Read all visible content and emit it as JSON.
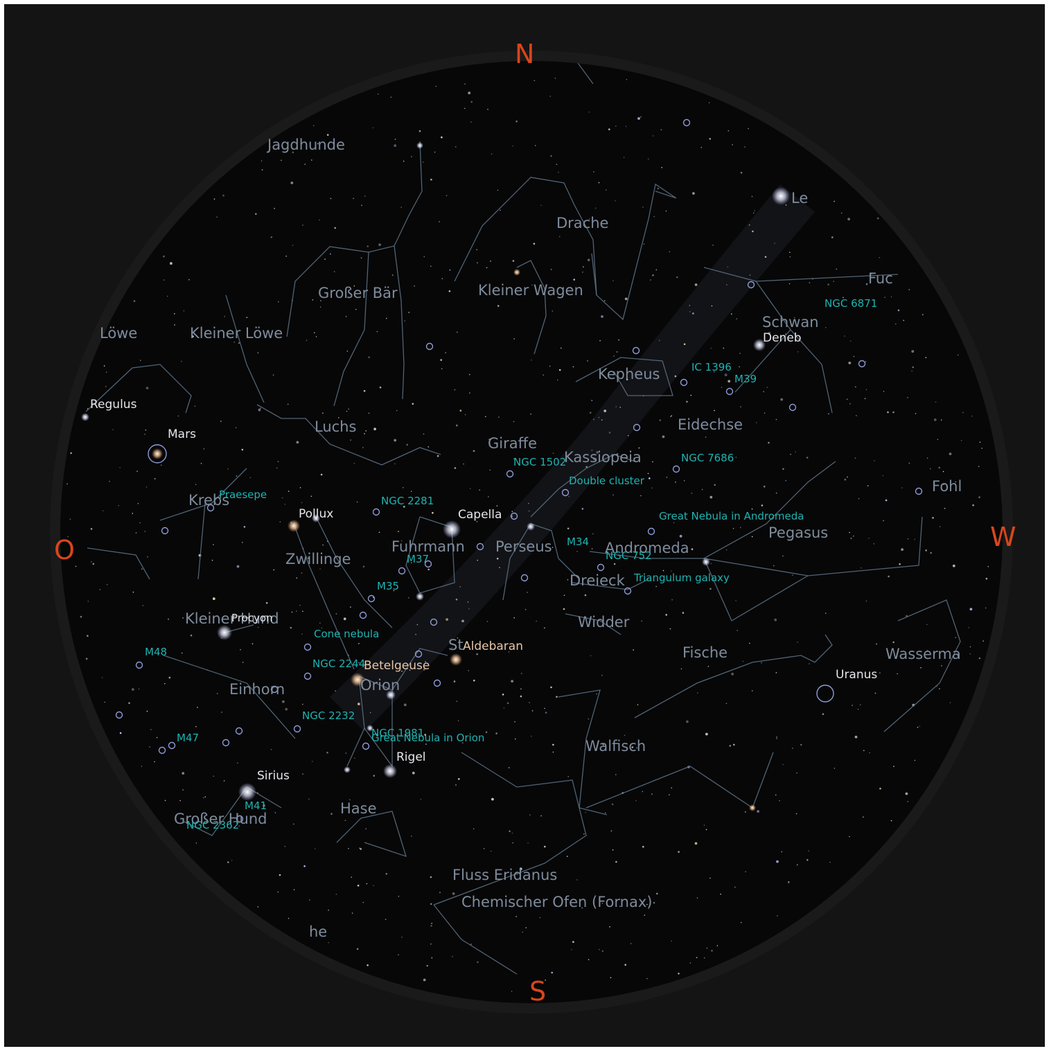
{
  "colors": {
    "background": "#141414",
    "sky": "#070708",
    "constellation_line": "#5e7486",
    "constellation_label": "#7f8c9c",
    "star_label": "#e6e6ea",
    "dso_label": "#1fb3b0",
    "cardinal": "#d9461c"
  },
  "cardinals": {
    "north": "N",
    "south": "S",
    "east": "O",
    "west": "W"
  },
  "constellations": [
    "Jagdhunde",
    "Drache",
    "Großer Bär",
    "Kleiner Wagen",
    "Löwe",
    "Kleiner Löwe",
    "Schwan",
    "Kepheus",
    "Luchs",
    "Giraffe",
    "Kassiopeia",
    "Eidechse",
    "Krebs",
    "Fuhrmann",
    "Perseus",
    "Andromeda",
    "Pegasus",
    "Zwillinge",
    "Dreieck",
    "Widder",
    "Kleiner Hund",
    "Fische",
    "Wasserma",
    "Einhorn",
    "Orion",
    "Walfisch",
    "Hase",
    "Großer Hund",
    "Fluss Eridanus",
    "Chemischer Ofen (Fornax)",
    "Fohl",
    "Fuc",
    "Le",
    "he"
  ],
  "stars": [
    "Regulus",
    "Mars",
    "Pollux",
    "Capella",
    "Deneb",
    "Procyon",
    "Aldebaran",
    "Betelgeuse",
    "Rigel",
    "Sirius",
    "Uranus"
  ],
  "deep_sky": [
    "NGC 6871",
    "IC 1396",
    "M39",
    "NGC 7686",
    "NGC 1502",
    "Double cluster",
    "Great Nebula in Andromeda",
    "Praesepe",
    "NGC 2281",
    "M34",
    "NGC 752",
    "M37",
    "Triangulum galaxy",
    "M35",
    "Cone nebula",
    "M48",
    "NGC 2244",
    "NGC 2232",
    "NGC 1981",
    "Great Nebula in Orion",
    "M47",
    "M41",
    "NGC 2362",
    "St"
  ]
}
